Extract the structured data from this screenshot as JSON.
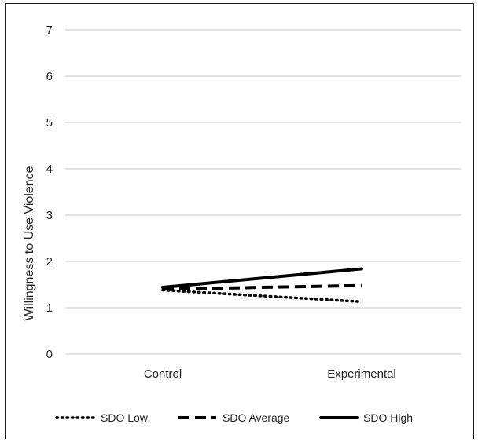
{
  "chart_data": {
    "type": "line",
    "categories": [
      "Control",
      "Experimental"
    ],
    "ylabel": "Willingness to Use Violence",
    "xlabel": "",
    "ylim": [
      0,
      7
    ],
    "yticks": [
      0,
      1,
      2,
      3,
      4,
      5,
      6,
      7
    ],
    "grid": true,
    "legend_position": "bottom",
    "series": [
      {
        "name": "SDO Low",
        "values": [
          1.38,
          1.13
        ],
        "style": "dotted",
        "color": "#000000"
      },
      {
        "name": "SDO Average",
        "values": [
          1.4,
          1.48
        ],
        "style": "dashed",
        "color": "#000000"
      },
      {
        "name": "SDO High",
        "values": [
          1.44,
          1.84
        ],
        "style": "solid",
        "color": "#000000"
      }
    ]
  }
}
